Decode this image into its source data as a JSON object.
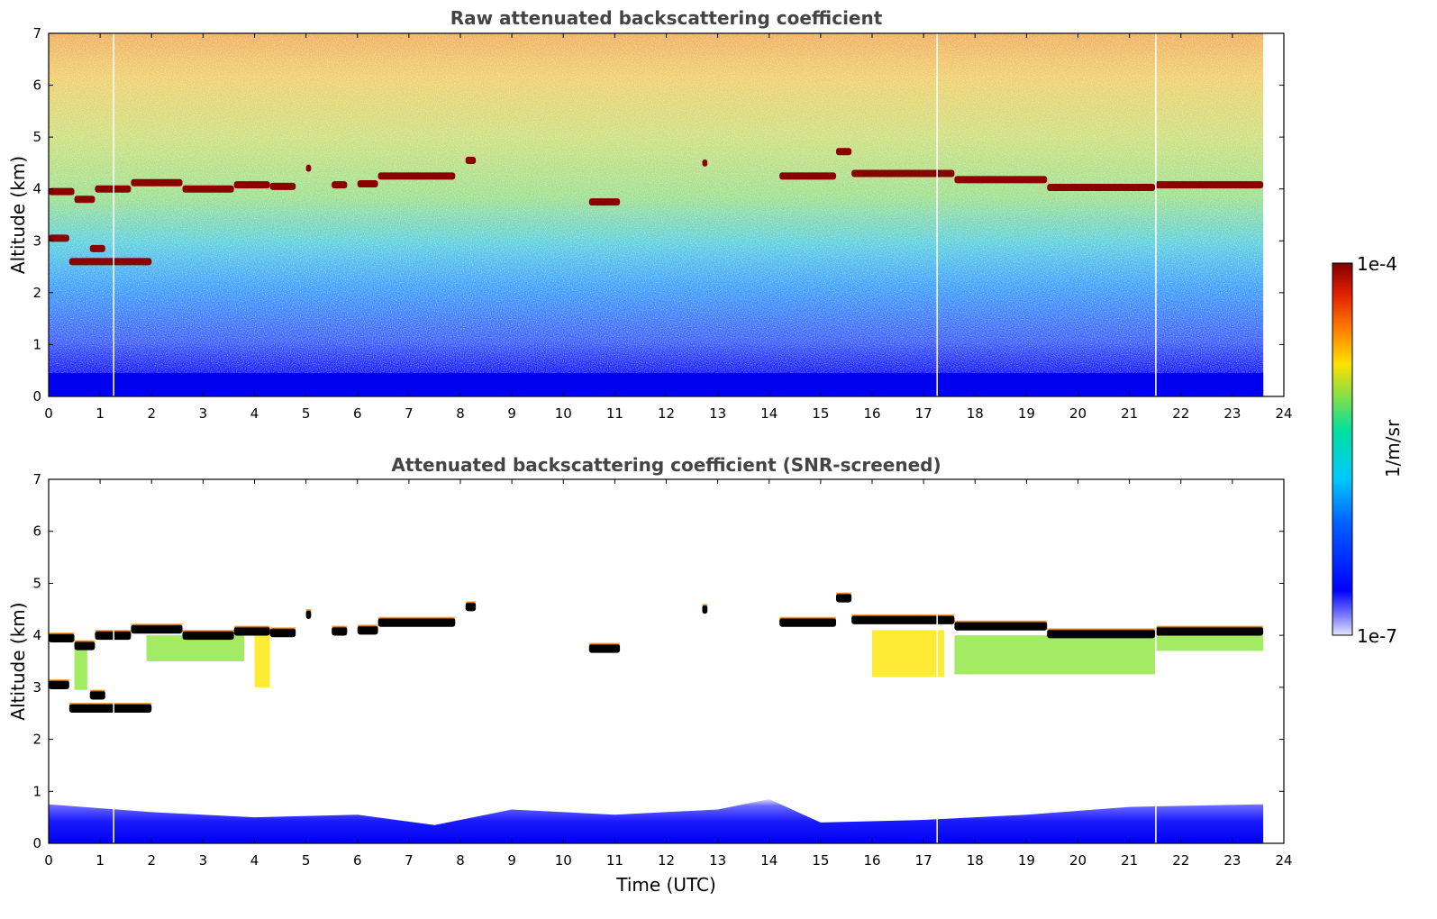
{
  "chart_data": [
    {
      "type": "heatmap",
      "id": "raw",
      "title": "Raw attenuated backscattering coefficient",
      "xlabel": "",
      "ylabel": "Altitude (km)",
      "xlim": [
        0,
        24
      ],
      "ylim": [
        0,
        7
      ],
      "xticks": [
        0,
        1,
        2,
        3,
        4,
        5,
        6,
        7,
        8,
        9,
        10,
        11,
        12,
        13,
        14,
        15,
        16,
        17,
        18,
        19,
        20,
        21,
        22,
        23,
        24
      ],
      "yticks": [
        0,
        1,
        2,
        3,
        4,
        5,
        6,
        7
      ],
      "data_end_hour": 23.6,
      "cloud_layers": [
        {
          "x_start": 0.0,
          "x_end": 0.5,
          "altitude_km": 3.95
        },
        {
          "x_start": 0.5,
          "x_end": 0.9,
          "altitude_km": 3.8
        },
        {
          "x_start": 0.9,
          "x_end": 1.6,
          "altitude_km": 4.0
        },
        {
          "x_start": 1.6,
          "x_end": 2.6,
          "altitude_km": 4.12
        },
        {
          "x_start": 2.6,
          "x_end": 3.6,
          "altitude_km": 4.0
        },
        {
          "x_start": 3.6,
          "x_end": 4.3,
          "altitude_km": 4.08
        },
        {
          "x_start": 4.3,
          "x_end": 4.8,
          "altitude_km": 4.05
        },
        {
          "x_start": 5.0,
          "x_end": 5.1,
          "altitude_km": 4.4
        },
        {
          "x_start": 5.5,
          "x_end": 5.8,
          "altitude_km": 4.08
        },
        {
          "x_start": 6.0,
          "x_end": 6.4,
          "altitude_km": 4.1
        },
        {
          "x_start": 6.4,
          "x_end": 7.9,
          "altitude_km": 4.25
        },
        {
          "x_start": 8.1,
          "x_end": 8.3,
          "altitude_km": 4.55
        },
        {
          "x_start": 10.5,
          "x_end": 11.1,
          "altitude_km": 3.75
        },
        {
          "x_start": 12.7,
          "x_end": 12.8,
          "altitude_km": 4.5
        },
        {
          "x_start": 14.2,
          "x_end": 15.3,
          "altitude_km": 4.25
        },
        {
          "x_start": 15.3,
          "x_end": 15.6,
          "altitude_km": 4.72
        },
        {
          "x_start": 15.6,
          "x_end": 17.6,
          "altitude_km": 4.3
        },
        {
          "x_start": 17.6,
          "x_end": 19.4,
          "altitude_km": 4.18
        },
        {
          "x_start": 19.4,
          "x_end": 21.5,
          "altitude_km": 4.03
        },
        {
          "x_start": 21.5,
          "x_end": 23.6,
          "altitude_km": 4.08
        },
        {
          "x_start": 0.0,
          "x_end": 0.4,
          "altitude_km": 3.05
        },
        {
          "x_start": 0.8,
          "x_end": 1.1,
          "altitude_km": 2.85
        },
        {
          "x_start": 0.4,
          "x_end": 2.0,
          "altitude_km": 2.6
        }
      ]
    },
    {
      "type": "heatmap",
      "id": "screened",
      "title": "Attenuated backscattering coefficient (SNR-screened)",
      "xlabel": "Time (UTC)",
      "ylabel": "Altitude (km)",
      "xlim": [
        0,
        24
      ],
      "ylim": [
        0,
        7
      ],
      "xticks": [
        0,
        1,
        2,
        3,
        4,
        5,
        6,
        7,
        8,
        9,
        10,
        11,
        12,
        13,
        14,
        15,
        16,
        17,
        18,
        19,
        20,
        21,
        22,
        23,
        24
      ],
      "yticks": [
        0,
        1,
        2,
        3,
        4,
        5,
        6,
        7
      ],
      "data_end_hour": 23.6,
      "virga_regions": [
        {
          "x_start": 1.9,
          "x_end": 3.8,
          "top_km": 4.0,
          "bottom_km": 3.5,
          "level": 0.55
        },
        {
          "x_start": 4.0,
          "x_end": 4.3,
          "top_km": 4.0,
          "bottom_km": 3.0,
          "level": 0.75
        },
        {
          "x_start": 0.5,
          "x_end": 0.75,
          "top_km": 3.9,
          "bottom_km": 2.95,
          "level": 0.5
        },
        {
          "x_start": 16.0,
          "x_end": 17.4,
          "top_km": 4.1,
          "bottom_km": 3.2,
          "level": 0.7
        },
        {
          "x_start": 17.6,
          "x_end": 21.5,
          "top_km": 4.0,
          "bottom_km": 3.25,
          "level": 0.58
        },
        {
          "x_start": 21.5,
          "x_end": 23.6,
          "top_km": 4.0,
          "bottom_km": 3.7,
          "level": 0.55
        }
      ],
      "boundary_layer_top_km": [
        {
          "x": 0,
          "y": 0.75
        },
        {
          "x": 2,
          "y": 0.6
        },
        {
          "x": 4,
          "y": 0.5
        },
        {
          "x": 6,
          "y": 0.55
        },
        {
          "x": 7.5,
          "y": 0.35
        },
        {
          "x": 9,
          "y": 0.65
        },
        {
          "x": 11,
          "y": 0.55
        },
        {
          "x": 13,
          "y": 0.65
        },
        {
          "x": 14,
          "y": 0.85
        },
        {
          "x": 15,
          "y": 0.4
        },
        {
          "x": 17,
          "y": 0.45
        },
        {
          "x": 19,
          "y": 0.55
        },
        {
          "x": 21,
          "y": 0.7
        },
        {
          "x": 23.6,
          "y": 0.75
        }
      ]
    }
  ],
  "colorbar": {
    "label": "1/m/sr",
    "min_label": "1e-7",
    "max_label": "1e-4",
    "colors": [
      "#e6e6fa",
      "#0000ff",
      "#00bfff",
      "#00e5a0",
      "#8ce63c",
      "#ffe600",
      "#ff8000",
      "#e61e00",
      "#7f0000"
    ]
  },
  "gap_times": [
    1.25,
    17.25,
    21.5
  ]
}
